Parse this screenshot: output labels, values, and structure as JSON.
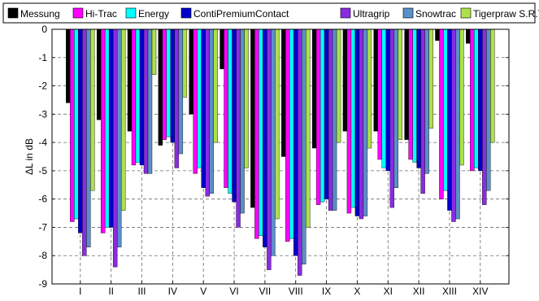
{
  "chart_data": {
    "type": "bar",
    "title": "",
    "xlabel": "",
    "ylabel": "ΔL in dB",
    "ylim": [
      -9,
      0
    ],
    "yticks": [
      0,
      -1,
      -2,
      -3,
      -4,
      -5,
      -6,
      -7,
      -8,
      -9
    ],
    "grid": "dashed",
    "legend_position": "top",
    "categories": [
      "I",
      "II",
      "III",
      "IV",
      "V",
      "VI",
      "VII",
      "VIII",
      "IX",
      "X",
      "XI",
      "XII",
      "XIII",
      "XIV"
    ],
    "series": [
      {
        "name": "Messung",
        "color": "#000000",
        "values": [
          -2.6,
          -3.2,
          -3.6,
          -4.1,
          -3.0,
          -1.4,
          -6.3,
          -4.5,
          -4.2,
          -3.6,
          -3.6,
          -3.9,
          -0.4,
          -0.5
        ]
      },
      {
        "name": "Hi-Trac",
        "color": "#ff00ff",
        "values": [
          -6.8,
          -7.2,
          -4.8,
          -3.9,
          -5.1,
          -5.6,
          -7.4,
          -7.5,
          -6.2,
          -6.5,
          -4.6,
          -4.6,
          -6.0,
          -5.0
        ]
      },
      {
        "name": "Energy",
        "color": "#00ffff",
        "values": [
          -6.7,
          -7.0,
          -4.7,
          -3.8,
          -4.9,
          -5.8,
          -7.3,
          -7.4,
          -6.1,
          -6.3,
          -4.9,
          -4.7,
          -5.7,
          -4.9
        ]
      },
      {
        "name": "ContiPremiumContact",
        "color": "#0000cd",
        "values": [
          -7.2,
          -7.0,
          -4.8,
          -4.0,
          -5.6,
          -6.1,
          -7.7,
          -8.0,
          -6.0,
          -6.6,
          -5.0,
          -4.9,
          -6.4,
          -5.0
        ]
      },
      {
        "name": "Ultragrip",
        "color": "#8a2be2",
        "values": [
          -8.0,
          -8.4,
          -5.1,
          -4.9,
          -5.9,
          -7.0,
          -8.5,
          -8.7,
          -6.4,
          -6.7,
          -6.3,
          -5.8,
          -6.8,
          -6.2
        ]
      },
      {
        "name": "Snowtrac",
        "color": "#5b8fc9",
        "values": [
          -7.7,
          -7.7,
          -5.1,
          -4.4,
          -5.8,
          -6.5,
          -8.0,
          -8.3,
          -6.4,
          -6.6,
          -5.6,
          -5.1,
          -6.7,
          -5.7
        ]
      },
      {
        "name": "Tigerpraw S.R.T.T.",
        "color": "#aee04a",
        "values": [
          -5.7,
          -6.4,
          -1.6,
          -2.4,
          -4.0,
          -4.9,
          -6.7,
          -7.0,
          -4.0,
          -4.2,
          -3.9,
          -3.5,
          -4.8,
          -4.0
        ]
      }
    ]
  }
}
